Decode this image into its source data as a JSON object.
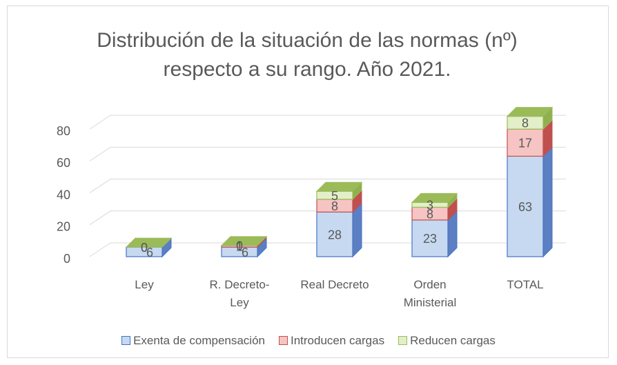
{
  "chart_data": {
    "type": "bar3d_stacked",
    "title": "Distribución de la situación de las normas (nº) respecto a su rango. Año 2021.",
    "categories": [
      "Ley",
      "R. Decreto-Ley",
      "Real Decreto",
      "Orden Ministerial",
      "TOTAL"
    ],
    "series": [
      {
        "name": "Exenta de compensación",
        "color": "#c6d9f1",
        "values": [
          6,
          6,
          28,
          23,
          63
        ]
      },
      {
        "name": "Introducen cargas",
        "color": "#f6c4c3",
        "values": [
          0,
          1,
          8,
          8,
          17
        ]
      },
      {
        "name": "Reducen cargas",
        "color": "#e2efc8",
        "values": [
          0,
          0,
          5,
          3,
          8
        ]
      }
    ],
    "ylim": [
      0,
      90
    ],
    "yticks": [
      0,
      20,
      40,
      60,
      80
    ],
    "grid": true,
    "legend": "bottom"
  }
}
